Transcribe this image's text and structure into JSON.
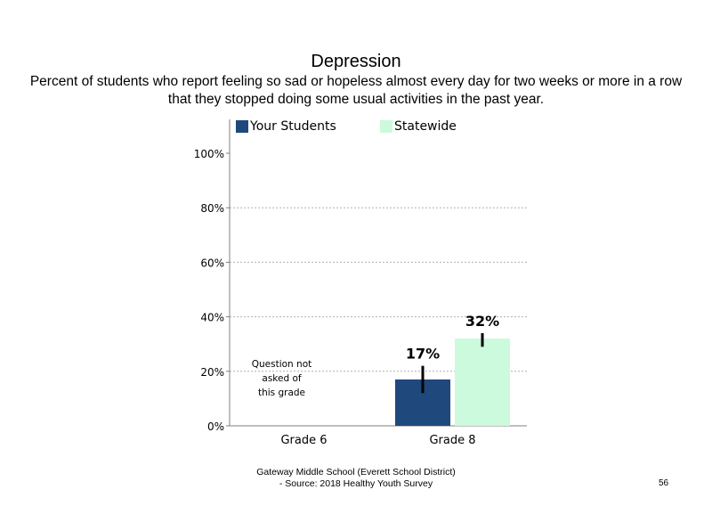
{
  "chart_data": {
    "type": "bar",
    "title": "Depression",
    "subtitle": "Percent of students who report feeling so sad or hopeless almost every day for two weeks or more in a row that they stopped doing some usual activities in the past year.",
    "categories": [
      "Grade 6",
      "Grade 8"
    ],
    "series": [
      {
        "name": "Your Students",
        "color": "#1f497d",
        "values": [
          null,
          17
        ],
        "error": [
          null,
          [
            12,
            22
          ]
        ],
        "labels": [
          null,
          "17%"
        ]
      },
      {
        "name": "Statewide",
        "color": "#ccfadc",
        "values": [
          null,
          32
        ],
        "error": [
          null,
          [
            29,
            34
          ]
        ],
        "labels": [
          null,
          "32%"
        ]
      }
    ],
    "yticks": [
      "0%",
      "20%",
      "40%",
      "60%",
      "80%",
      "100%"
    ],
    "ylim": [
      0,
      100
    ],
    "grid": "dashed horizontal",
    "legend": "top",
    "annotations": [
      "Question not",
      "asked of",
      "this grade"
    ]
  },
  "footer": {
    "line1": "Gateway Middle School (Everett School District)",
    "line2": "- Source: 2018 Healthy Youth Survey"
  },
  "page_number": "56"
}
